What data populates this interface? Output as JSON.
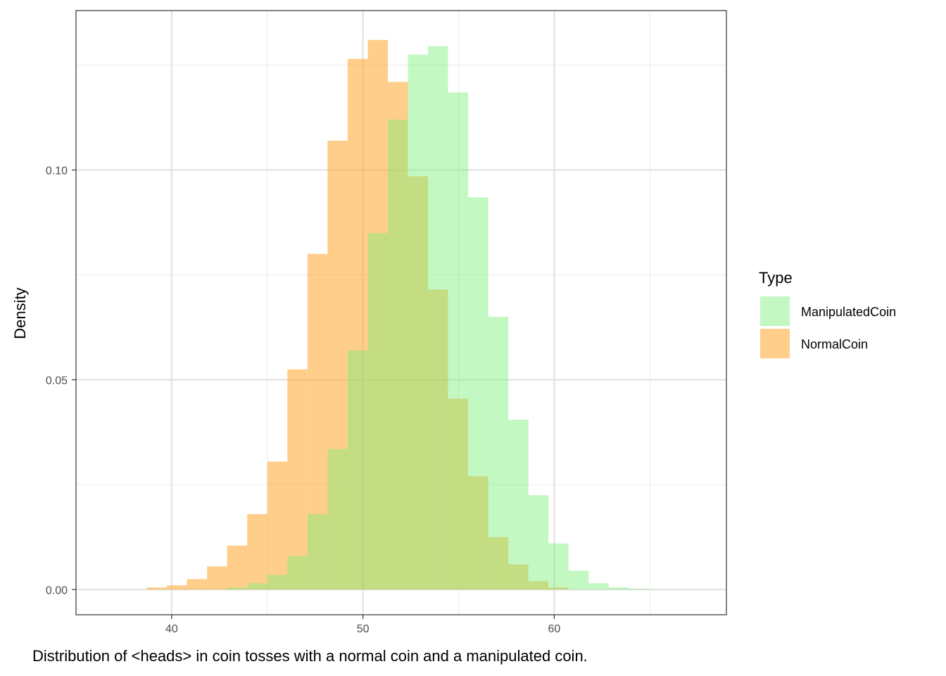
{
  "chart_data": {
    "type": "bar",
    "subtype": "overlapping-histogram",
    "xlabel": "",
    "ylabel": "Density",
    "caption": "Distribution of <heads> in coin tosses with a normal coin and a manipulated coin.",
    "xlim": [
      35,
      69
    ],
    "ylim": [
      -0.006,
      0.138
    ],
    "x_ticks": [
      40,
      50,
      60
    ],
    "y_ticks": [
      0.0,
      0.05,
      0.1
    ],
    "y_tick_labels": [
      "0.00",
      "0.05",
      "0.10"
    ],
    "grid": true,
    "legend": {
      "title": "Type",
      "position": "right"
    },
    "bin_width": 1.05,
    "series": [
      {
        "name": "NormalCoin",
        "color": "#ffa62b",
        "opacity": 0.55,
        "bin_starts": [
          38.7,
          39.75,
          40.8,
          41.85,
          42.9,
          43.95,
          45.0,
          46.05,
          47.1,
          48.15,
          49.2,
          50.25,
          51.3,
          52.35,
          53.4,
          54.45,
          55.5,
          56.55,
          57.6,
          58.65,
          59.7
        ],
        "values": [
          0.0005,
          0.001,
          0.0025,
          0.0055,
          0.0105,
          0.018,
          0.0305,
          0.0525,
          0.08,
          0.107,
          0.1265,
          0.131,
          0.121,
          0.0985,
          0.0715,
          0.0455,
          0.027,
          0.0125,
          0.006,
          0.002,
          0.0005
        ]
      },
      {
        "name": "ManipulatedCoin",
        "color": "#7cf07a",
        "opacity": 0.45,
        "bin_starts": [
          42.9,
          43.95,
          45.0,
          46.05,
          47.1,
          48.15,
          49.2,
          50.25,
          51.3,
          52.35,
          53.4,
          54.45,
          55.5,
          56.55,
          57.6,
          58.65,
          59.7,
          60.75,
          61.8,
          62.85,
          63.9
        ],
        "values": [
          0.0005,
          0.0015,
          0.0035,
          0.008,
          0.018,
          0.0335,
          0.057,
          0.085,
          0.112,
          0.1275,
          0.1295,
          0.1185,
          0.0935,
          0.065,
          0.0405,
          0.0225,
          0.011,
          0.0045,
          0.0015,
          0.0005,
          0.0002
        ]
      }
    ]
  }
}
